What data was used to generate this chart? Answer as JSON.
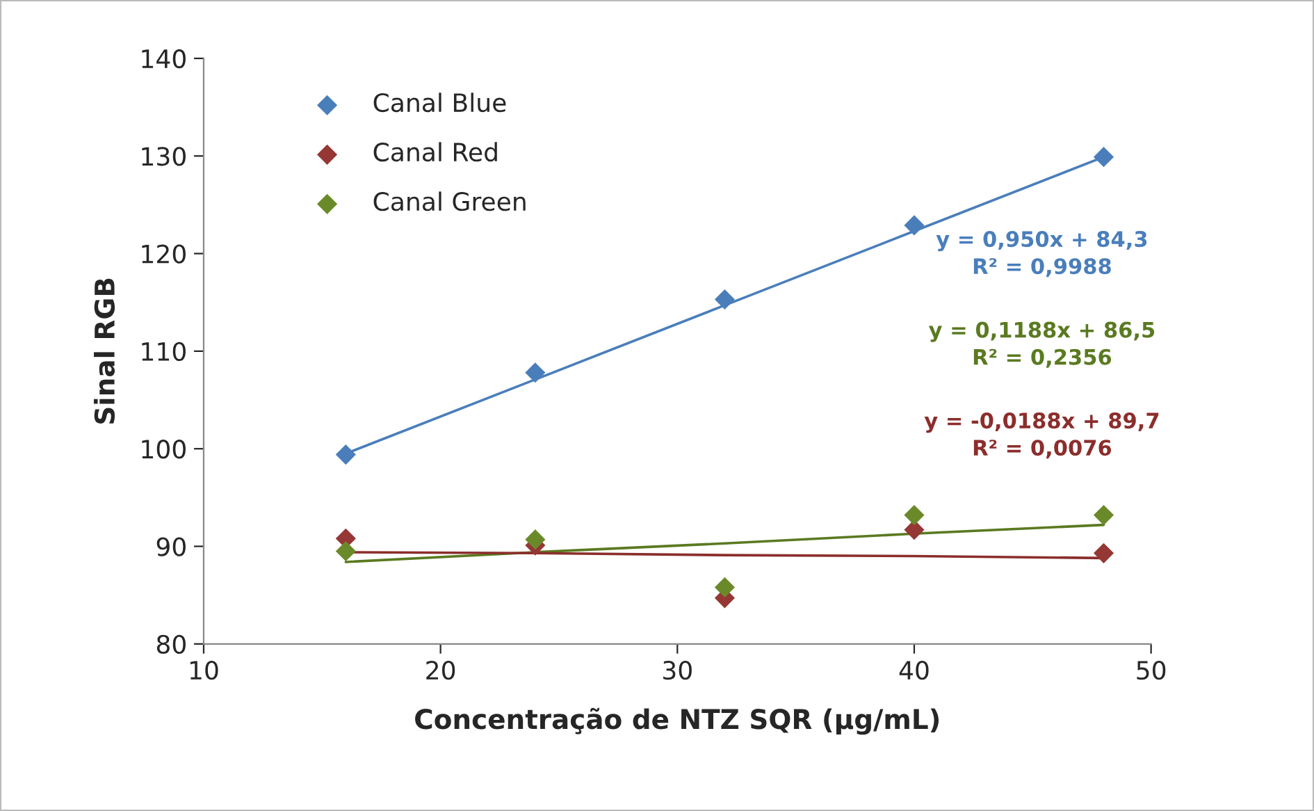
{
  "chart_data": {
    "type": "scatter",
    "xlabel": "Concentração de NTZ SQR (µg/mL)",
    "ylabel": "Sinal RGB",
    "x": [
      16,
      24,
      32,
      40,
      48
    ],
    "series": [
      {
        "name": "Canal Blue",
        "color": "#4a7ebb",
        "values": [
          99.4,
          107.8,
          115.3,
          122.9,
          129.9
        ]
      },
      {
        "name": "Canal Red",
        "color": "#953735",
        "values": [
          90.8,
          90.1,
          84.7,
          91.7,
          89.3
        ]
      },
      {
        "name": "Canal Green",
        "color": "#6a8a2a",
        "values": [
          89.5,
          90.7,
          85.8,
          93.2,
          93.2
        ]
      },
      {
        "type": "line",
        "color": "#4a7ebb",
        "values": [
          99.5,
          107.1,
          114.7,
          122.3,
          129.9
        ],
        "marker": "none"
      },
      {
        "type": "line",
        "color": "#5a7a20",
        "values": [
          88.4,
          89.4,
          90.3,
          91.3,
          92.2
        ],
        "marker": "none"
      },
      {
        "type": "line",
        "color": "#8b2e2c",
        "values": [
          89.4,
          89.3,
          89.1,
          89.0,
          88.8
        ],
        "marker": "none"
      }
    ],
    "annotations": [
      "y = 0,950x + 84,3\nR² = 0,9988",
      "y = 0,1188x + 86,5\nR² = 0,2356",
      "y = -0,0188x + 89,7\nR² = 0,0076"
    ],
    "xlim": [
      10,
      50
    ],
    "xticks": [
      10,
      20,
      30,
      40,
      50
    ],
    "ylim": [
      80,
      140
    ],
    "yticks": [
      80,
      90,
      100,
      110,
      120,
      130,
      140
    ],
    "marker": "diamond",
    "grid": false,
    "legend": "top left"
  }
}
